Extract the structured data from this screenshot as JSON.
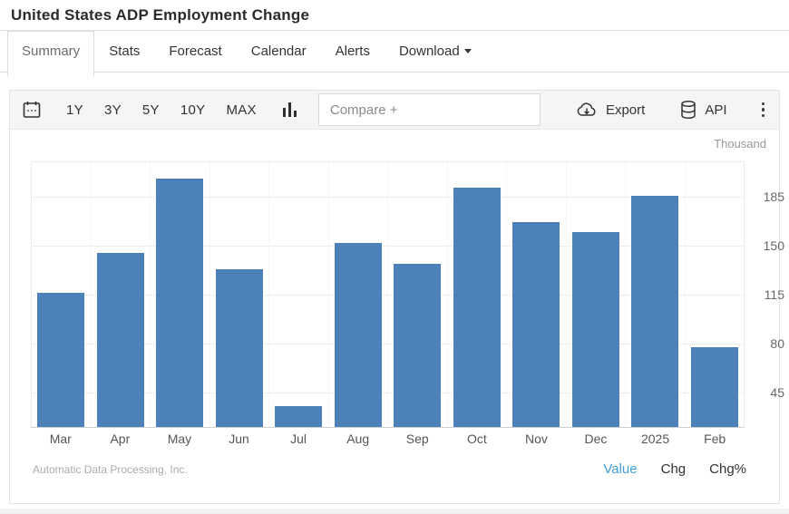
{
  "header": {
    "title": "United States ADP Employment Change"
  },
  "tabs": [
    {
      "label": "Summary",
      "active": true,
      "caret": false
    },
    {
      "label": "Stats",
      "active": false,
      "caret": false
    },
    {
      "label": "Forecast",
      "active": false,
      "caret": false
    },
    {
      "label": "Calendar",
      "active": false,
      "caret": false
    },
    {
      "label": "Alerts",
      "active": false,
      "caret": false
    },
    {
      "label": "Download",
      "active": false,
      "caret": true
    }
  ],
  "toolbar": {
    "ranges": [
      "1Y",
      "3Y",
      "5Y",
      "10Y",
      "MAX"
    ],
    "compare_placeholder": "Compare +",
    "export_label": "Export",
    "api_label": "API"
  },
  "chart_data": {
    "type": "bar",
    "title": "United States ADP Employment Change",
    "unit_label": "Thousand",
    "categories": [
      "Mar",
      "Apr",
      "May",
      "Jun",
      "Jul",
      "Aug",
      "Sep",
      "Oct",
      "Nov",
      "Dec",
      "2025",
      "Feb"
    ],
    "values": [
      116,
      145,
      198,
      133,
      35,
      152,
      137,
      192,
      167,
      160,
      186,
      77
    ],
    "ylabel": "Thousand",
    "xlabel": "",
    "ylim": [
      20,
      210
    ],
    "yticks": [
      45,
      80,
      115,
      150,
      185
    ],
    "grid": true,
    "legend_position": "none",
    "bar_color": "#4d81ba",
    "source": "Automatic Data Processing, Inc."
  },
  "footer": {
    "source": "Automatic Data Processing, Inc.",
    "modes": [
      {
        "label": "Value",
        "active": true
      },
      {
        "label": "Chg",
        "active": false
      },
      {
        "label": "Chg%",
        "active": false
      }
    ]
  },
  "colors": {
    "accent_blue": "#419fd9",
    "bar_blue": "#4d81ba"
  }
}
